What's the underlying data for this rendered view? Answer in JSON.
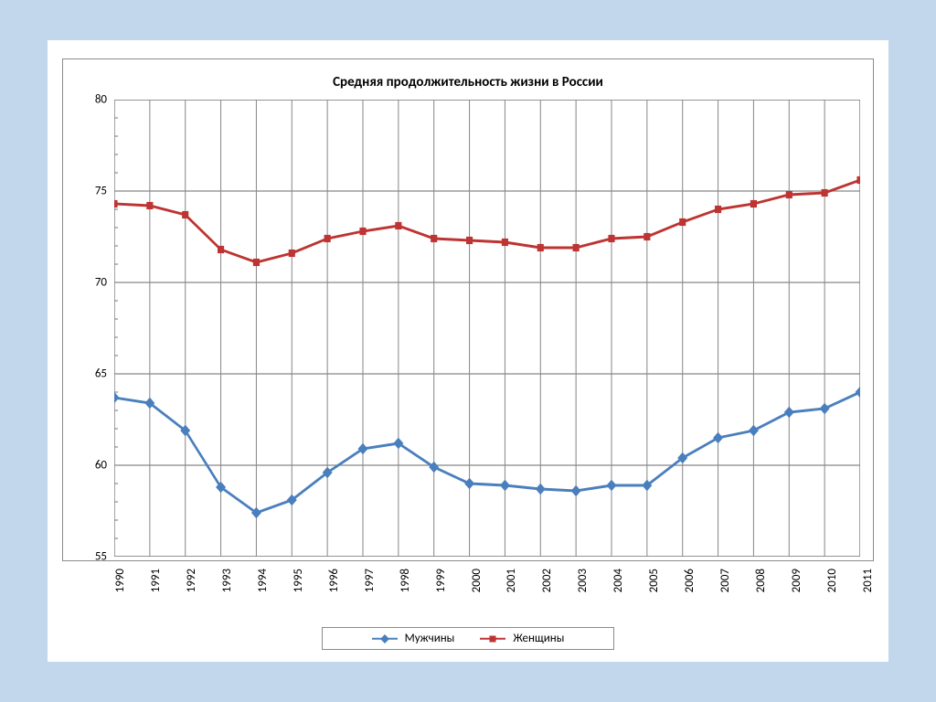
{
  "page_background": "#c2d7eb",
  "frame_background": "#ffffff",
  "chart": {
    "type": "line",
    "title": "Средняя продолжительность жизни в России",
    "title_fontsize": 15,
    "axis_label_fontsize": 13,
    "legend_fontsize": 13,
    "years": [
      1990,
      1991,
      1992,
      1993,
      1994,
      1995,
      1996,
      1997,
      1998,
      1999,
      2000,
      2001,
      2002,
      2003,
      2004,
      2005,
      2006,
      2007,
      2008,
      2009,
      2010,
      2011
    ],
    "ylim": [
      55,
      80
    ],
    "ytick_step": 5,
    "yticks": [
      55,
      60,
      65,
      70,
      75,
      80
    ],
    "minor_yticks_per_interval": 4,
    "border_color": "#8b8b8b",
    "grid_color": "#888888",
    "grid_on": true,
    "background_color": "#ffffff",
    "line_width": 2.5,
    "marker_size": 7,
    "series": {
      "men": {
        "label": "Мужчины",
        "color": "#4a7fbd",
        "marker": "diamond",
        "values": [
          63.7,
          63.4,
          61.9,
          58.8,
          57.4,
          58.1,
          59.6,
          60.9,
          61.2,
          59.9,
          59.0,
          58.9,
          58.7,
          58.6,
          58.9,
          58.9,
          60.4,
          61.5,
          61.9,
          62.9,
          63.1,
          64.0
        ]
      },
      "women": {
        "label": "Женщины",
        "color": "#bd3432",
        "marker": "square",
        "values": [
          74.3,
          74.2,
          73.7,
          71.8,
          71.1,
          71.6,
          72.4,
          72.8,
          73.1,
          72.4,
          72.3,
          72.2,
          71.9,
          71.9,
          72.4,
          72.5,
          73.3,
          74.0,
          74.3,
          74.8,
          74.9,
          75.6
        ]
      }
    }
  }
}
